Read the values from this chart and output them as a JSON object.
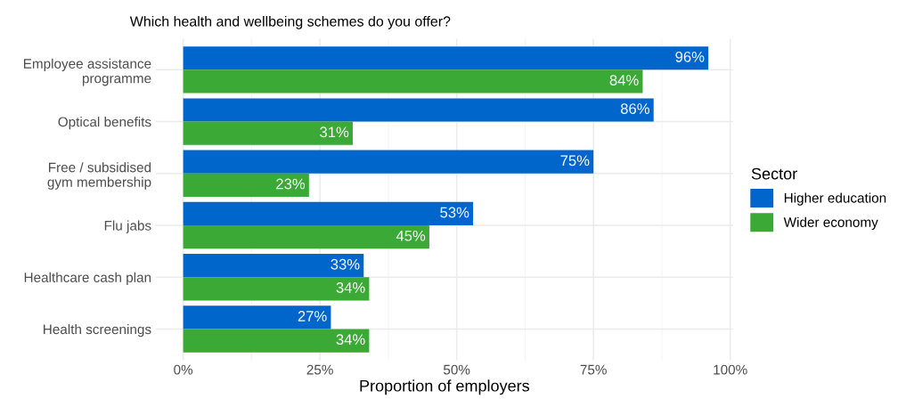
{
  "chart_data": {
    "type": "bar",
    "orientation": "horizontal",
    "title": "Which health and wellbeing schemes do you offer?",
    "xlabel": "Proportion of employers",
    "legend_title": "Sector",
    "legend": "right",
    "grid": true,
    "categories": [
      "Employee assistance\nprogramme",
      "Optical benefits",
      "Free / subsidised\ngym membership",
      "Flu jabs",
      "Healthcare cash plan",
      "Health screenings"
    ],
    "series": [
      {
        "name": "Higher education",
        "color": "#0066cc",
        "values": [
          96,
          86,
          75,
          53,
          33,
          27
        ],
        "value_labels": [
          "96%",
          "86%",
          "75%",
          "53%",
          "33%",
          "27%"
        ]
      },
      {
        "name": "Wider economy",
        "color": "#3aa935",
        "values": [
          84,
          31,
          23,
          45,
          34,
          34
        ],
        "value_labels": [
          "84%",
          "31%",
          "23%",
          "45%",
          "34%",
          "34%"
        ]
      }
    ],
    "xlim": [
      -5,
      100.5
    ],
    "xticks": [
      {
        "value": 0,
        "label": "0%"
      },
      {
        "value": 25,
        "label": "25%"
      },
      {
        "value": 50,
        "label": "50%"
      },
      {
        "value": 75,
        "label": "75%"
      },
      {
        "value": 100,
        "label": "100%"
      }
    ]
  }
}
